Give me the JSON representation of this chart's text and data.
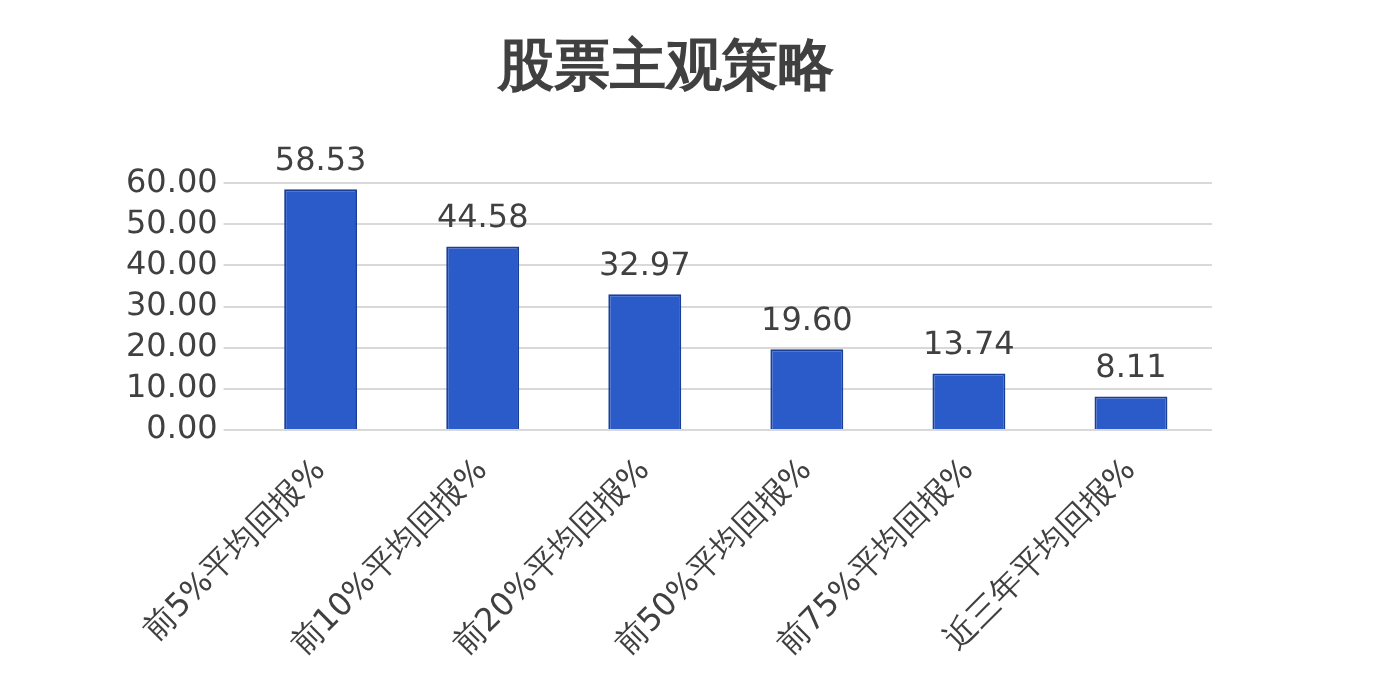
{
  "chart_data": {
    "type": "bar",
    "title": "股票主观策略",
    "categories": [
      "前5%平均回报%",
      "前10%平均回报%",
      "前20%平均回报%",
      "前50%平均回报%",
      "前75%平均回报%",
      "近三年平均回报%"
    ],
    "values": [
      58.53,
      44.58,
      32.97,
      19.6,
      13.74,
      8.11
    ],
    "color": "#2a5bc8",
    "ylim": [
      0,
      60
    ],
    "yticks": [
      {
        "value": 0,
        "label": "0.00"
      },
      {
        "value": 10,
        "label": "10.00"
      },
      {
        "value": 20,
        "label": "20.00"
      },
      {
        "value": 30,
        "label": "30.00"
      },
      {
        "value": 40,
        "label": "40.00"
      },
      {
        "value": 50,
        "label": "50.00"
      },
      {
        "value": 60,
        "label": "60.00"
      }
    ],
    "value_labels": [
      "58.53",
      "44.58",
      "32.97",
      "19.60",
      "13.74",
      "8.11"
    ],
    "grid": "y"
  }
}
